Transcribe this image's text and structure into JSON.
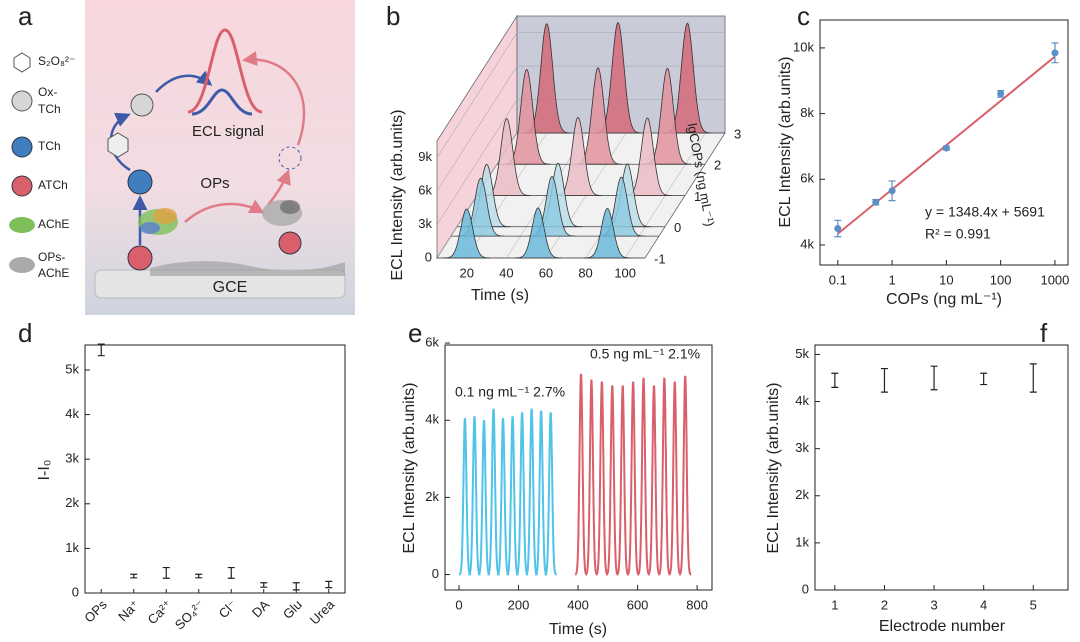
{
  "schematic": {
    "panel_label": "a",
    "legend": [
      {
        "label_lines": [
          "S₂O₈²⁻"
        ]
      },
      {
        "label_lines": [
          "Ox-",
          "TCh"
        ]
      },
      {
        "label_lines": [
          "TCh"
        ]
      },
      {
        "label_lines": [
          "ATCh"
        ]
      },
      {
        "label_lines": [
          "AChE"
        ]
      },
      {
        "label_lines": [
          "OPs-",
          "AChE"
        ]
      }
    ],
    "signal_label": "ECL signal",
    "analyte_label": "OPs",
    "electrode_label": "GCE"
  },
  "chart_data": [
    {
      "type": "waterfall",
      "panel_label": "b",
      "ylabel": "ECL Intensity (arb.units)",
      "xlabel": "Time (s)",
      "zlabel": "lgCOPs (ng mL⁻¹)",
      "xlim": [
        5,
        110
      ],
      "xticks": [
        20,
        40,
        60,
        80,
        100
      ],
      "ylim": [
        0,
        10500
      ],
      "yticks": [
        0,
        {
          "value": 3000,
          "label": "3k"
        },
        {
          "value": 6000,
          "label": "6k"
        },
        {
          "value": 9000,
          "label": "9k"
        }
      ],
      "zlim": [
        -1,
        3
      ],
      "zticks": [
        -1,
        0,
        1,
        2,
        3
      ],
      "x": [
        20,
        56,
        91
      ],
      "series": [
        {
          "z": -1,
          "color": "#6cb9d9",
          "values": [
            4400,
            4500,
            4450
          ]
        },
        {
          "z": -0.3,
          "color": "#8fcae2",
          "values": [
            5200,
            5350,
            5300
          ]
        },
        {
          "z": 0,
          "color": "#bcdde9",
          "values": [
            5600,
            5700,
            5650
          ]
        },
        {
          "z": 1,
          "color": "#ebbcc4",
          "values": [
            6900,
            7000,
            6950
          ]
        },
        {
          "z": 2,
          "color": "#e2939d",
          "values": [
            8500,
            8650,
            8600
          ]
        },
        {
          "z": 3,
          "color": "#d46a78",
          "values": [
            9800,
            9900,
            9850
          ]
        }
      ]
    },
    {
      "type": "scatter",
      "panel_label": "c",
      "ylabel": "ECL Intensity (arb.units)",
      "xlabel": "COPs (ng mL⁻¹)",
      "xscale": "log",
      "xlim": [
        0.047,
        1740
      ],
      "xticks": [
        0.1,
        1,
        10,
        100,
        1000
      ],
      "ylim": [
        3390,
        10850
      ],
      "yticks": [
        {
          "value": 4000,
          "label": "4k"
        },
        {
          "value": 6000,
          "label": "6k"
        },
        {
          "value": 8000,
          "label": "8k"
        },
        {
          "value": 10000,
          "label": "10k"
        }
      ],
      "x": [
        0.1,
        0.5,
        1,
        10,
        100,
        1000
      ],
      "values": [
        4500,
        5300,
        5650,
        6950,
        8600,
        9850
      ],
      "errors": [
        250,
        80,
        300,
        60,
        100,
        300
      ],
      "color": "#5b8fc7",
      "fit": {
        "slope": 1348.4,
        "intercept": 5691,
        "color": "#d9606b"
      },
      "annotations": [
        "y = 1348.4x + 5691",
        "R² = 0.991"
      ]
    },
    {
      "type": "errorbar",
      "panel_label": "d",
      "ylabel": "I-I₀",
      "categories": [
        "OPs",
        "Na⁺",
        "Ca²⁺",
        "SO₄²⁻",
        "Cl⁻",
        "DA",
        "Glu",
        "Urea"
      ],
      "values": [
        5450,
        380,
        450,
        380,
        450,
        180,
        150,
        190
      ],
      "errors": [
        130,
        40,
        120,
        40,
        120,
        50,
        80,
        70
      ],
      "ylim": [
        0,
        5560
      ],
      "yticks": [
        0,
        {
          "value": 1000,
          "label": "1k"
        },
        {
          "value": 2000,
          "label": "2k"
        },
        {
          "value": 3000,
          "label": "3k"
        },
        {
          "value": 4000,
          "label": "4k"
        },
        {
          "value": 5000,
          "label": "5k"
        }
      ],
      "color": "#222222"
    },
    {
      "type": "line",
      "panel_label": "e",
      "ylabel": "ECL Intensity (arb.units)",
      "xlabel": "Time (s)",
      "xlim": [
        -47,
        850
      ],
      "xticks": [
        0,
        200,
        400,
        600,
        800
      ],
      "ylim": [
        -400,
        5950
      ],
      "yticks": [
        0,
        {
          "value": 2000,
          "label": "2k"
        },
        {
          "value": 4000,
          "label": "4k"
        },
        {
          "value": 6000,
          "label": "6k"
        }
      ],
      "series": [
        {
          "color": "#4fc3e8",
          "x": [
            20,
            52,
            84,
            116,
            148,
            180,
            212,
            244,
            276,
            308
          ],
          "values": [
            4050,
            4100,
            4000,
            4300,
            4050,
            4100,
            4200,
            4300,
            4250,
            4200
          ]
        },
        {
          "color": "#d9606b",
          "x": [
            410,
            445,
            480,
            515,
            550,
            585,
            620,
            655,
            690,
            725,
            760
          ],
          "values": [
            5200,
            5050,
            5000,
            4900,
            4900,
            5000,
            5100,
            4900,
            5100,
            5000,
            5150
          ]
        }
      ],
      "annotations": [
        "0.1 ng mL⁻¹   2.7%",
        "0.5 ng mL⁻¹   2.1%"
      ]
    },
    {
      "type": "errorbar",
      "panel_label": "f",
      "ylabel": "ECL Intensity (arb.units)",
      "xlabel": "Electrode number",
      "xlim": [
        0.6,
        5.7
      ],
      "xticks": [
        1,
        2,
        3,
        4,
        5
      ],
      "ylim": [
        0,
        5200
      ],
      "yticks": [
        0,
        {
          "value": 1000,
          "label": "1k"
        },
        {
          "value": 2000,
          "label": "2k"
        },
        {
          "value": 3000,
          "label": "3k"
        },
        {
          "value": 4000,
          "label": "4k"
        },
        {
          "value": 5000,
          "label": "5k"
        }
      ],
      "x": [
        1,
        2,
        3,
        4,
        5
      ],
      "values": [
        4450,
        4450,
        4500,
        4480,
        4500
      ],
      "errors": [
        150,
        250,
        250,
        120,
        300
      ],
      "color": "#222222"
    }
  ]
}
